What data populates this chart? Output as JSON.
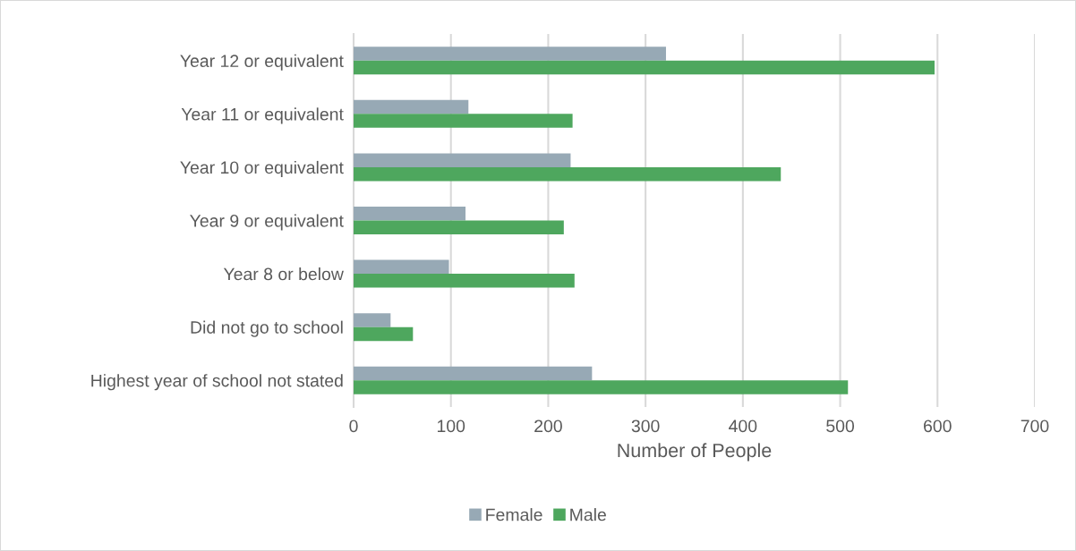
{
  "chart_data": {
    "type": "bar",
    "orientation": "horizontal",
    "xlabel": "Number of People",
    "categories": [
      "Year 12 or equivalent",
      "Year 11 or equivalent",
      "Year 10 or equivalent",
      "Year 9 or equivalent",
      "Year 8 or below",
      "Did not go to school",
      "Highest year of school not stated"
    ],
    "series": [
      {
        "name": "Female",
        "color": "#97a9b5",
        "values": [
          321,
          118,
          223,
          115,
          98,
          38,
          245
        ]
      },
      {
        "name": "Male",
        "color": "#4ea75e",
        "values": [
          597,
          225,
          439,
          216,
          227,
          61,
          508
        ]
      }
    ],
    "xlim": [
      0,
      700
    ],
    "xticks": [
      0,
      100,
      200,
      300,
      400,
      500,
      600,
      700
    ],
    "grid": "x",
    "legend": "bottom"
  }
}
